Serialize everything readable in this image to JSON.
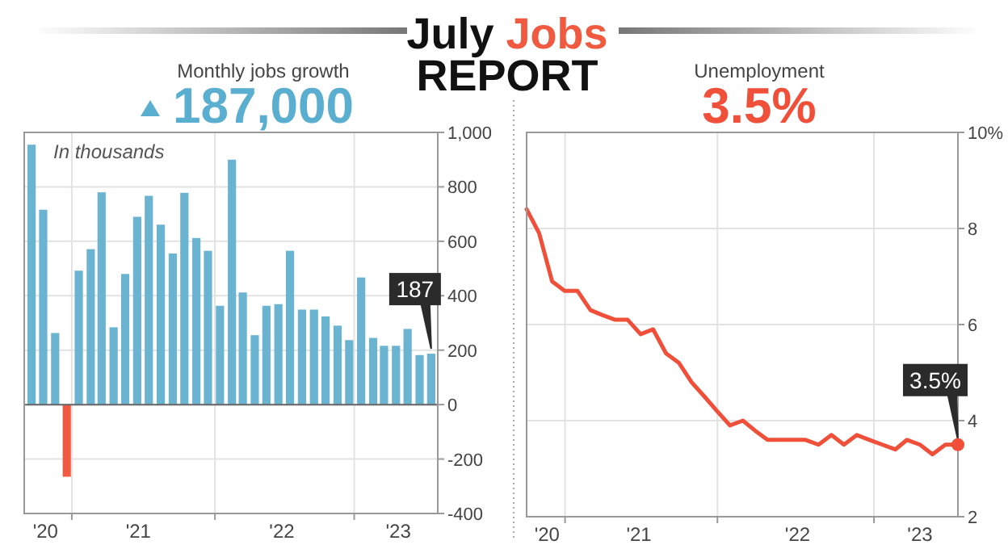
{
  "chart_data": [
    {
      "type": "other",
      "title": "July Jobs REPORT"
    },
    {
      "type": "bar",
      "title": "Monthly jobs growth",
      "subtitle": "187,000",
      "annotations": [
        "In thousands"
      ],
      "x": [
        "2020-09",
        "2020-10",
        "2020-11",
        "2020-12",
        "2021-01",
        "2021-02",
        "2021-03",
        "2021-04",
        "2021-05",
        "2021-06",
        "2021-07",
        "2021-08",
        "2021-09",
        "2021-10",
        "2021-11",
        "2021-12",
        "2022-01",
        "2022-02",
        "2022-03",
        "2022-04",
        "2022-05",
        "2022-06",
        "2022-07",
        "2022-08",
        "2022-09",
        "2022-10",
        "2022-11",
        "2022-12",
        "2023-01",
        "2023-02",
        "2023-03",
        "2023-04",
        "2023-05",
        "2023-06",
        "2023-07"
      ],
      "values": [
        955,
        716,
        263,
        -265,
        492,
        571,
        780,
        284,
        480,
        690,
        767,
        661,
        555,
        778,
        612,
        565,
        363,
        900,
        412,
        255,
        363,
        369,
        565,
        349,
        349,
        324,
        290,
        237,
        467,
        245,
        216,
        216,
        278,
        182,
        187
      ],
      "colors": [
        "#6ab4d2",
        "#6ab4d2",
        "#6ab4d2",
        "#f05a40",
        "#6ab4d2",
        "#6ab4d2",
        "#6ab4d2",
        "#6ab4d2",
        "#6ab4d2",
        "#6ab4d2",
        "#6ab4d2",
        "#6ab4d2",
        "#6ab4d2",
        "#6ab4d2",
        "#6ab4d2",
        "#6ab4d2",
        "#6ab4d2",
        "#6ab4d2",
        "#6ab4d2",
        "#6ab4d2",
        "#6ab4d2",
        "#6ab4d2",
        "#6ab4d2",
        "#6ab4d2",
        "#6ab4d2",
        "#6ab4d2",
        "#6ab4d2",
        "#6ab4d2",
        "#6ab4d2",
        "#6ab4d2",
        "#6ab4d2",
        "#6ab4d2",
        "#6ab4d2",
        "#6ab4d2",
        "#6ab4d2"
      ],
      "value_labels": [
        null,
        null,
        null,
        null,
        null,
        null,
        null,
        null,
        null,
        null,
        null,
        null,
        null,
        null,
        null,
        null,
        null,
        null,
        null,
        null,
        null,
        null,
        null,
        null,
        null,
        null,
        null,
        null,
        null,
        null,
        null,
        null,
        null,
        null,
        "187"
      ],
      "xlim": [
        "2020-08-13",
        "2023-07-18"
      ],
      "xticks": [
        {
          "value": "2020-10-07",
          "label": "'20"
        },
        {
          "value": "2020-12-14",
          "label": null
        },
        {
          "value": "2021-06-04",
          "label": "'21"
        },
        {
          "value": "2021-12-19",
          "label": null
        },
        {
          "value": "2022-06-10",
          "label": "'22"
        },
        {
          "value": "2022-12-14",
          "label": null
        },
        {
          "value": "2023-04-07",
          "label": "'23"
        }
      ],
      "ylim": [
        -400,
        1000
      ],
      "yticks": [
        -400,
        -200,
        0,
        200,
        400,
        600,
        800,
        {
          "value": 1000,
          "label": "1,000"
        }
      ],
      "grid": true
    },
    {
      "type": "line",
      "title": "Unemployment",
      "subtitle": "3.5%",
      "x": [
        "2020-09",
        "2020-10",
        "2020-11",
        "2020-12",
        "2021-01",
        "2021-02",
        "2021-03",
        "2021-04",
        "2021-05",
        "2021-06",
        "2021-07",
        "2021-08",
        "2021-09",
        "2021-10",
        "2021-11",
        "2021-12",
        "2022-01",
        "2022-02",
        "2022-03",
        "2022-04",
        "2022-05",
        "2022-06",
        "2022-07",
        "2022-08",
        "2022-09",
        "2022-10",
        "2022-11",
        "2022-12",
        "2023-01",
        "2023-02",
        "2023-03",
        "2023-04",
        "2023-05",
        "2023-06",
        "2023-07"
      ],
      "series": [
        {
          "color": "#f0503a",
          "values": [
            8.4,
            7.9,
            6.9,
            6.7,
            6.7,
            6.3,
            6.2,
            6.1,
            6.1,
            5.8,
            5.9,
            5.4,
            5.2,
            4.8,
            4.5,
            4.2,
            3.9,
            4.0,
            3.8,
            3.6,
            3.6,
            3.6,
            3.6,
            3.5,
            3.7,
            3.5,
            3.7,
            3.6,
            3.5,
            3.4,
            3.6,
            3.5,
            3.3,
            3.5,
            3.5
          ],
          "value_labels": [
            null,
            null,
            null,
            null,
            null,
            null,
            null,
            null,
            null,
            null,
            null,
            null,
            null,
            null,
            null,
            null,
            null,
            null,
            null,
            null,
            null,
            null,
            null,
            null,
            null,
            null,
            null,
            null,
            null,
            null,
            null,
            null,
            null,
            null,
            "3.5%"
          ]
        }
      ],
      "xlim": [
        "2020-09-01",
        "2023-07-01"
      ],
      "xticks": [
        {
          "value": "2020-10-20",
          "label": "'20"
        },
        {
          "value": "2020-12-02",
          "label": null
        },
        {
          "value": "2021-05-28",
          "label": "'21"
        },
        {
          "value": "2021-12-02",
          "label": null
        },
        {
          "value": "2022-06-12",
          "label": "'22"
        },
        {
          "value": "2022-12-12",
          "label": null
        },
        {
          "value": "2023-04-01",
          "label": "'23"
        }
      ],
      "ylim": [
        2,
        10
      ],
      "yticks": [
        2,
        4,
        6,
        8,
        {
          "value": 10,
          "label": "10%"
        }
      ],
      "grid": true,
      "marker": "none",
      "line_style": "solid"
    }
  ]
}
